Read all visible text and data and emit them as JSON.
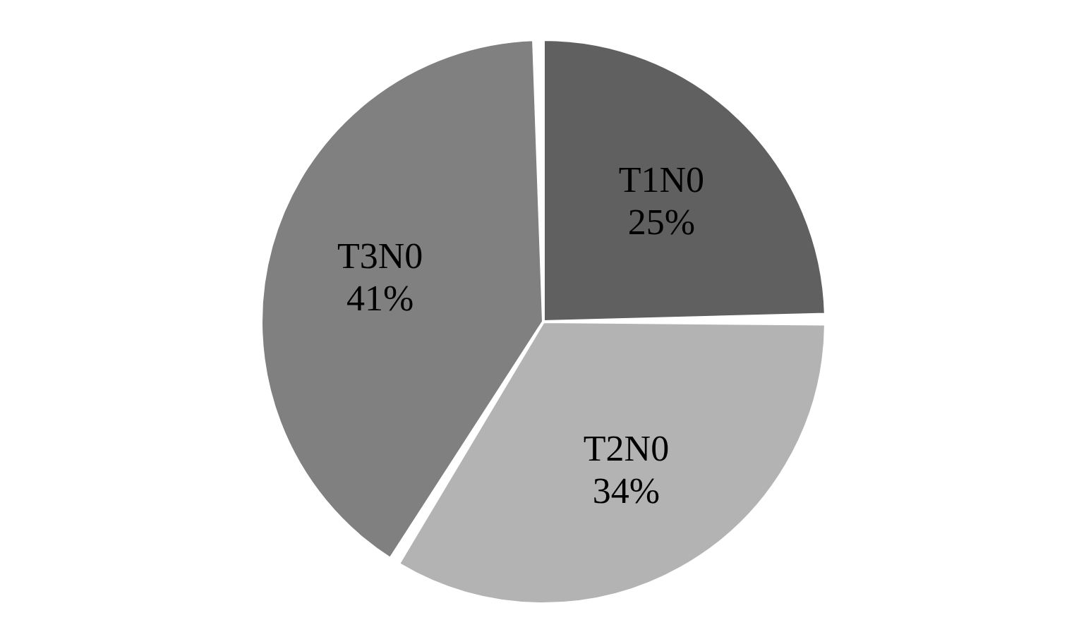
{
  "chart_data": {
    "type": "pie",
    "categories": [
      "T1N0",
      "T2N0",
      "T3N0"
    ],
    "values": [
      25,
      34,
      41
    ],
    "colors": [
      "#606060",
      "#b3b3b3",
      "#808080"
    ],
    "value_labels": [
      "25%",
      "34%",
      "41%"
    ]
  }
}
